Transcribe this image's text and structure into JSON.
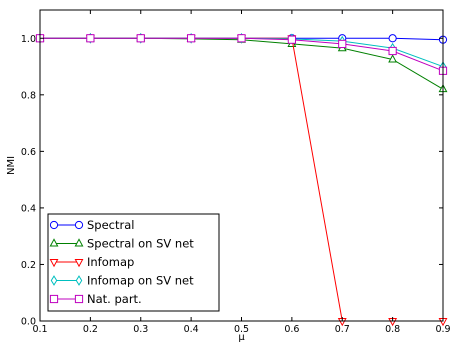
{
  "chart_data": {
    "type": "line",
    "xlabel": "μ",
    "ylabel": "NMI",
    "xlim": [
      0.1,
      0.9
    ],
    "ylim": [
      0.0,
      1.1
    ],
    "xticks": [
      "0.1",
      "0.2",
      "0.3",
      "0.4",
      "0.5",
      "0.6",
      "0.7",
      "0.8",
      "0.9"
    ],
    "yticks": [
      "0.0",
      "0.2",
      "0.4",
      "0.6",
      "0.8",
      "1.0"
    ],
    "x": [
      0.1,
      0.2,
      0.3,
      0.4,
      0.5,
      0.6,
      0.7,
      0.8,
      0.9
    ],
    "legend_position": "bottom-left",
    "grid": false,
    "series": [
      {
        "name": "Spectral",
        "color": "#0000ff",
        "marker": "circle",
        "values": [
          1.0,
          1.0,
          1.0,
          1.0,
          1.0,
          1.0,
          1.0,
          1.0,
          0.995
        ]
      },
      {
        "name": "Spectral on SV net",
        "color": "#008000",
        "marker": "triangle-up",
        "values": [
          1.0,
          1.0,
          1.0,
          0.998,
          0.995,
          0.98,
          0.965,
          0.925,
          0.82
        ]
      },
      {
        "name": "Infomap",
        "color": "#ff0000",
        "marker": "triangle-down",
        "values": [
          1.0,
          1.0,
          1.0,
          1.0,
          1.0,
          1.0,
          0.0,
          0.0,
          0.0
        ]
      },
      {
        "name": "Infomap on SV net",
        "color": "#00bfbf",
        "marker": "diamond",
        "values": [
          1.0,
          1.0,
          1.0,
          1.0,
          1.0,
          0.998,
          0.99,
          0.965,
          0.9
        ]
      },
      {
        "name": "Nat. part.",
        "color": "#bf00bf",
        "marker": "square",
        "values": [
          1.0,
          1.0,
          1.0,
          1.0,
          1.0,
          0.995,
          0.98,
          0.955,
          0.885
        ]
      }
    ]
  }
}
